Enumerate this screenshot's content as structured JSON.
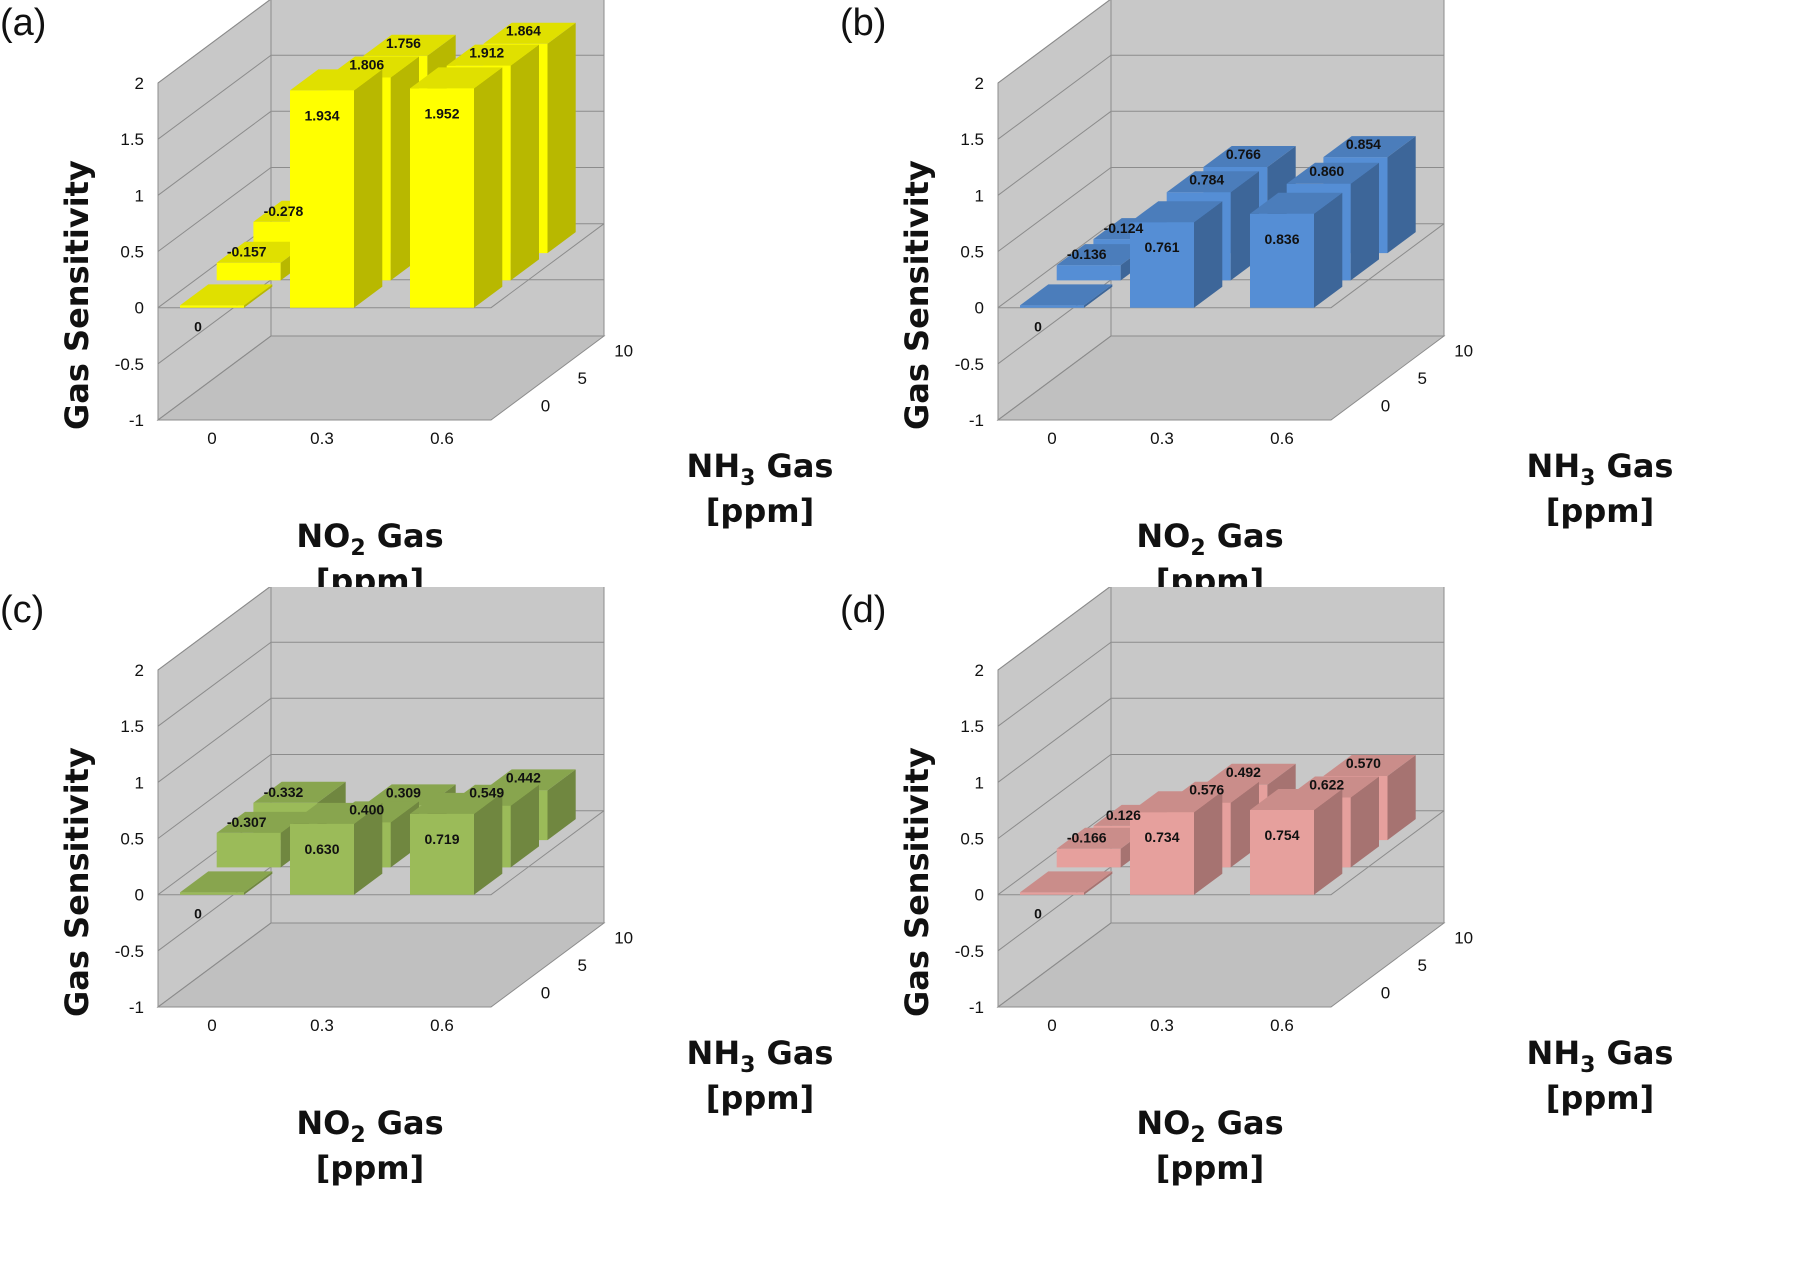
{
  "chart_data": [
    {
      "type": "bar",
      "panel": "(a)",
      "color": "#ffff00",
      "ylabel": "Gas Sensitivity",
      "xlabel_main": "NO",
      "xlabel_sub": "2",
      "xlabel_rest": " Gas",
      "xlabel_unit": "[ppm]",
      "zlabel_main": "NH",
      "zlabel_sub": "3",
      "zlabel_rest": " Gas",
      "zlabel_unit": "[ppm]",
      "x_categories": [
        "0",
        "0.3",
        "0.6"
      ],
      "z_categories": [
        "0",
        "5",
        "10"
      ],
      "yticks": [
        "2",
        "1.5",
        "1",
        "0.5",
        "0",
        "-0.5",
        "-1"
      ],
      "ylim": [
        -1,
        2
      ],
      "values": [
        [
          0,
          -0.157,
          -0.278
        ],
        [
          1.934,
          1.806,
          1.756
        ],
        [
          1.952,
          1.912,
          1.864
        ]
      ],
      "labels": [
        [
          "0",
          "-0.157",
          "-0.278"
        ],
        [
          "1.934",
          "1.806",
          "1.756"
        ],
        [
          "1.952",
          "1.912",
          "1.864"
        ]
      ]
    },
    {
      "type": "bar",
      "panel": "(b)",
      "color": "#558ed5",
      "ylabel": "Gas Sensitivity",
      "xlabel_main": "NO",
      "xlabel_sub": "2",
      "xlabel_rest": " Gas",
      "xlabel_unit": "[ppm]",
      "zlabel_main": "NH",
      "zlabel_sub": "3",
      "zlabel_rest": " Gas",
      "zlabel_unit": "[ppm]",
      "x_categories": [
        "0",
        "0.3",
        "0.6"
      ],
      "z_categories": [
        "0",
        "5",
        "10"
      ],
      "yticks": [
        "2",
        "1.5",
        "1",
        "0.5",
        "0",
        "-0.5",
        "-1"
      ],
      "ylim": [
        -1,
        2
      ],
      "values": [
        [
          0,
          -0.136,
          -0.124
        ],
        [
          0.761,
          0.784,
          0.766
        ],
        [
          0.836,
          0.86,
          0.854
        ]
      ],
      "labels": [
        [
          "0",
          "-0.136",
          "-0.124"
        ],
        [
          "0.761",
          "0.784",
          "0.766"
        ],
        [
          "0.836",
          "0.860",
          "0.854"
        ]
      ]
    },
    {
      "type": "bar",
      "panel": "(c)",
      "color": "#9bbb59",
      "ylabel": "Gas Sensitivity",
      "xlabel_main": "NO",
      "xlabel_sub": "2",
      "xlabel_rest": " Gas",
      "xlabel_unit": "[ppm]",
      "zlabel_main": "NH",
      "zlabel_sub": "3",
      "zlabel_rest": " Gas",
      "zlabel_unit": "[ppm]",
      "x_categories": [
        "0",
        "0.3",
        "0.6"
      ],
      "z_categories": [
        "0",
        "5",
        "10"
      ],
      "yticks": [
        "2",
        "1.5",
        "1",
        "0.5",
        "0",
        "-0.5",
        "-1"
      ],
      "ylim": [
        -1,
        2
      ],
      "values": [
        [
          0,
          -0.307,
          -0.332
        ],
        [
          0.63,
          0.4,
          0.309
        ],
        [
          0.719,
          0.549,
          0.442
        ]
      ],
      "labels": [
        [
          "0",
          "-0.307",
          "-0.332"
        ],
        [
          "0.630",
          "0.400",
          "0.309"
        ],
        [
          "0.719",
          "0.549",
          "0.442"
        ]
      ]
    },
    {
      "type": "bar",
      "panel": "(d)",
      "color": "#e6a09d",
      "ylabel": "Gas Sensitivity",
      "xlabel_main": "NO",
      "xlabel_sub": "2",
      "xlabel_rest": " Gas",
      "xlabel_unit": "[ppm]",
      "zlabel_main": "NH",
      "zlabel_sub": "3",
      "zlabel_rest": " Gas",
      "zlabel_unit": "[ppm]",
      "x_categories": [
        "0",
        "0.3",
        "0.6"
      ],
      "z_categories": [
        "0",
        "5",
        "10"
      ],
      "yticks": [
        "2",
        "1.5",
        "1",
        "0.5",
        "0",
        "-0.5",
        "-1"
      ],
      "ylim": [
        -1,
        2
      ],
      "values": [
        [
          0,
          -0.166,
          0.126
        ],
        [
          0.734,
          0.576,
          0.492
        ],
        [
          0.754,
          0.622,
          0.57
        ]
      ],
      "labels": [
        [
          "0",
          "-0.166",
          "0.126"
        ],
        [
          "0.734",
          "0.576",
          "0.492"
        ],
        [
          "0.754",
          "0.622",
          "0.570"
        ]
      ]
    }
  ]
}
